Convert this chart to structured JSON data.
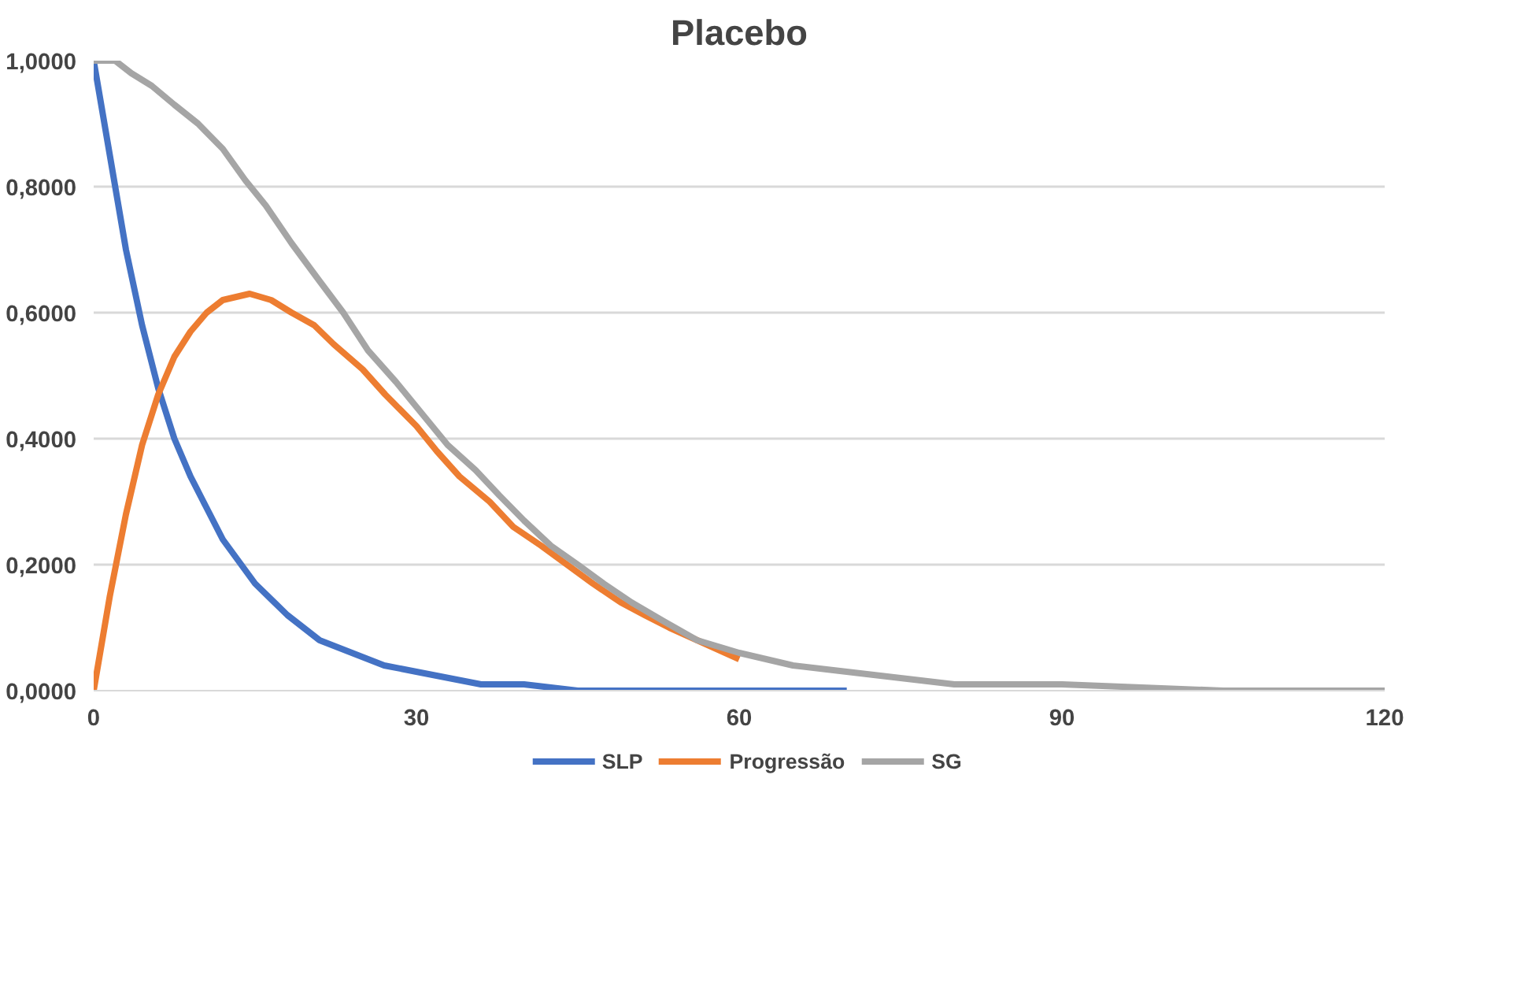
{
  "chart_data": {
    "type": "line",
    "title": "Placebo",
    "xlim": [
      0,
      120
    ],
    "xticks": [
      0,
      30,
      60,
      90,
      120
    ],
    "ylim": [
      0,
      1
    ],
    "yticks": [
      {
        "value": 0,
        "label": "0,0000"
      },
      {
        "value": 0.2,
        "label": "0,2000"
      },
      {
        "value": 0.4,
        "label": "0,4000"
      },
      {
        "value": 0.6,
        "label": "0,6000"
      },
      {
        "value": 0.8,
        "label": "0,8000"
      },
      {
        "value": 1,
        "label": "1,0000"
      }
    ],
    "grid": "y",
    "legend": "bottom",
    "line_style": "solid",
    "marker": "none",
    "series": [
      {
        "name": "SLP",
        "color": "#4472c4",
        "x": [
          0,
          1.5,
          3,
          4.5,
          6,
          7.5,
          9,
          10.5,
          12,
          15,
          18,
          21,
          24,
          27,
          30,
          33,
          36,
          40,
          45,
          50,
          60,
          70
        ],
        "values": [
          1,
          0.85,
          0.7,
          0.58,
          0.48,
          0.4,
          0.34,
          0.29,
          0.24,
          0.17,
          0.12,
          0.08,
          0.06,
          0.04,
          0.03,
          0.02,
          0.01,
          0.01,
          0,
          0,
          0,
          0
        ]
      },
      {
        "name": "Progressão",
        "color": "#ed7d31",
        "x": [
          0,
          1.5,
          3,
          4.5,
          6,
          7.5,
          9,
          10.5,
          12,
          14.5,
          16.5,
          18.4,
          20.5,
          22.3,
          25,
          27.1,
          30,
          31.9,
          34,
          36.8,
          39,
          41.6,
          44,
          46.4,
          49,
          51.2,
          53.5,
          56.1,
          60
        ],
        "values": [
          0,
          0.15,
          0.28,
          0.39,
          0.47,
          0.53,
          0.57,
          0.6,
          0.62,
          0.63,
          0.62,
          0.6,
          0.58,
          0.55,
          0.51,
          0.47,
          0.42,
          0.38,
          0.34,
          0.3,
          0.26,
          0.23,
          0.2,
          0.17,
          0.14,
          0.12,
          0.1,
          0.08,
          0.05
        ]
      },
      {
        "name": "SG",
        "color": "#a5a5a5",
        "x": [
          0,
          2,
          3.5,
          5.4,
          7.5,
          9.7,
          12,
          14.1,
          16,
          18.4,
          21,
          23.2,
          25.5,
          28.1,
          30.5,
          32.9,
          35.5,
          37.7,
          40,
          42.5,
          45,
          47.4,
          50,
          53,
          56.1,
          60,
          65,
          70,
          75,
          80,
          90,
          105,
          120
        ],
        "values": [
          1,
          1,
          0.98,
          0.96,
          0.93,
          0.9,
          0.86,
          0.81,
          0.77,
          0.71,
          0.65,
          0.6,
          0.54,
          0.49,
          0.44,
          0.39,
          0.35,
          0.31,
          0.27,
          0.23,
          0.2,
          0.17,
          0.14,
          0.11,
          0.08,
          0.06,
          0.04,
          0.03,
          0.02,
          0.01,
          0.01,
          0,
          0
        ]
      }
    ]
  }
}
